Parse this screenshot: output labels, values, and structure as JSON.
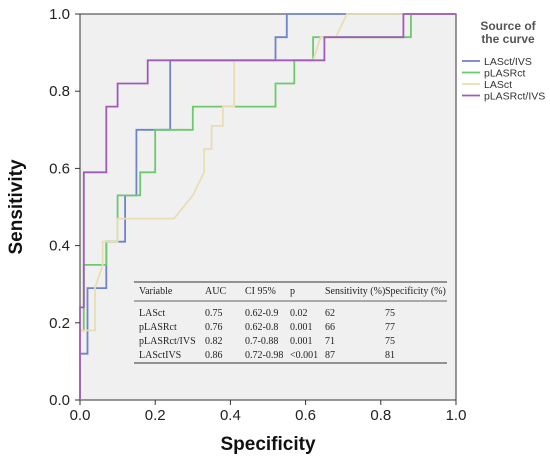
{
  "chart_data": {
    "type": "line",
    "xlabel": "Specificity",
    "ylabel": "Sensitivity",
    "xlim": [
      0.0,
      1.0
    ],
    "ylim": [
      0.0,
      1.0
    ],
    "xticks": [
      "0.0",
      "0.2",
      "0.4",
      "0.6",
      "0.8",
      "1.0"
    ],
    "yticks": [
      "0.0",
      "0.2",
      "0.4",
      "0.6",
      "0.8",
      "1.0"
    ],
    "grid": false,
    "legend": {
      "title_lines": [
        "Source of",
        "the curve"
      ],
      "placement": "right"
    },
    "series": [
      {
        "name": "LASct/IVS",
        "color": "#6f83c7",
        "points": [
          [
            0,
            0
          ],
          [
            0,
            0.12
          ],
          [
            0.02,
            0.12
          ],
          [
            0.02,
            0.29
          ],
          [
            0.07,
            0.29
          ],
          [
            0.07,
            0.41
          ],
          [
            0.12,
            0.41
          ],
          [
            0.12,
            0.53
          ],
          [
            0.15,
            0.53
          ],
          [
            0.15,
            0.7
          ],
          [
            0.24,
            0.7
          ],
          [
            0.24,
            0.88
          ],
          [
            0.52,
            0.88
          ],
          [
            0.52,
            0.94
          ],
          [
            0.55,
            0.94
          ],
          [
            0.55,
            1.0
          ],
          [
            1.0,
            1.0
          ]
        ]
      },
      {
        "name": "pLASRct",
        "color": "#6cc96c",
        "points": [
          [
            0,
            0
          ],
          [
            0,
            0.18
          ],
          [
            0.01,
            0.18
          ],
          [
            0.01,
            0.35
          ],
          [
            0.07,
            0.35
          ],
          [
            0.07,
            0.41
          ],
          [
            0.1,
            0.41
          ],
          [
            0.1,
            0.53
          ],
          [
            0.16,
            0.53
          ],
          [
            0.16,
            0.59
          ],
          [
            0.2,
            0.59
          ],
          [
            0.2,
            0.7
          ],
          [
            0.3,
            0.7
          ],
          [
            0.3,
            0.76
          ],
          [
            0.52,
            0.76
          ],
          [
            0.52,
            0.82
          ],
          [
            0.57,
            0.82
          ],
          [
            0.57,
            0.88
          ],
          [
            0.62,
            0.88
          ],
          [
            0.62,
            0.94
          ],
          [
            0.88,
            0.94
          ],
          [
            0.88,
            1.0
          ],
          [
            1.0,
            1.0
          ]
        ]
      },
      {
        "name": "LASct",
        "color": "#e8deb4",
        "points": [
          [
            0,
            0
          ],
          [
            0,
            0.18
          ],
          [
            0.04,
            0.18
          ],
          [
            0.04,
            0.29
          ],
          [
            0.06,
            0.35
          ],
          [
            0.06,
            0.41
          ],
          [
            0.1,
            0.41
          ],
          [
            0.1,
            0.47
          ],
          [
            0.25,
            0.47
          ],
          [
            0.3,
            0.53
          ],
          [
            0.33,
            0.59
          ],
          [
            0.33,
            0.65
          ],
          [
            0.35,
            0.65
          ],
          [
            0.35,
            0.71
          ],
          [
            0.38,
            0.71
          ],
          [
            0.38,
            0.76
          ],
          [
            0.41,
            0.76
          ],
          [
            0.41,
            0.88
          ],
          [
            0.62,
            0.88
          ],
          [
            0.64,
            0.94
          ],
          [
            0.68,
            0.94
          ],
          [
            0.71,
            1.0
          ],
          [
            1.0,
            1.0
          ]
        ]
      },
      {
        "name": "pLASRct/IVS",
        "color": "#a05ab8",
        "points": [
          [
            0,
            0
          ],
          [
            0,
            0.24
          ],
          [
            0.01,
            0.24
          ],
          [
            0.01,
            0.59
          ],
          [
            0.07,
            0.59
          ],
          [
            0.07,
            0.76
          ],
          [
            0.1,
            0.76
          ],
          [
            0.1,
            0.82
          ],
          [
            0.14,
            0.82
          ],
          [
            0.14,
            0.82
          ],
          [
            0.18,
            0.82
          ],
          [
            0.18,
            0.88
          ],
          [
            0.65,
            0.88
          ],
          [
            0.65,
            0.94
          ],
          [
            0.86,
            0.94
          ],
          [
            0.86,
            1.0
          ],
          [
            1.0,
            1.0
          ]
        ]
      }
    ],
    "table": {
      "columns": [
        "Variable",
        "AUC",
        "CI 95%",
        "p",
        "Sensitivity (%)",
        "Specificity (%)"
      ],
      "rows": [
        [
          "LASct",
          "0.75",
          "0.62-0.9",
          "0.02",
          "62",
          "75"
        ],
        [
          "pLASRct",
          "0.76",
          "0.62-0.8",
          "0.001",
          "66",
          "77"
        ],
        [
          "pLASRct/IVS",
          "0.82",
          "0.7-0.88",
          "0.001",
          "71",
          "75"
        ],
        [
          "LASctIVS",
          "0.86",
          "0.72-0.98",
          "<0.001",
          "87",
          "81"
        ]
      ]
    }
  }
}
